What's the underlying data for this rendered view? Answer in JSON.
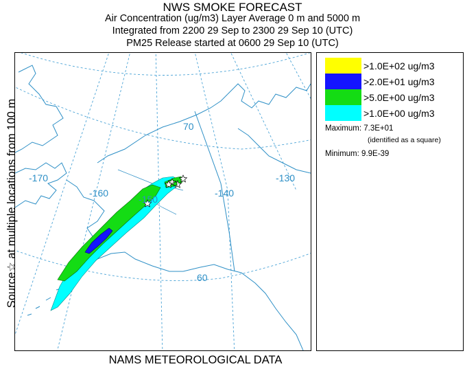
{
  "header": {
    "title": "NWS SMOKE FORECAST",
    "line2": "Air Concentration (ug/m3) Layer Average    0 m and  5000 m",
    "line3": "Integrated from 2200 29 Sep to 2300 29 Sep 10 (UTC)",
    "line4": "PM25 Release started at 0600 29 Sep 10 (UTC)"
  },
  "side_label": "Source☆  at multiple locations  from  100 m",
  "footer": "NAMS METEOROLOGICAL DATA",
  "map": {
    "longitude_labels": [
      "-170",
      "-160",
      "-150",
      "-140",
      "-130"
    ],
    "latitude_labels": [
      "70",
      "60"
    ],
    "colors": {
      "coast": "#2d8fc6",
      "grid": "#4aa3d6",
      "label": "#2d8fc6",
      "above_100": "#ffff00",
      "above_20": "#1414ff",
      "above_5": "#14dc14",
      "above_1": "#00ffff"
    }
  },
  "legend": {
    "items": [
      {
        "label": ">1.0E+02 ug/m3",
        "color": "#ffff00"
      },
      {
        "label": ">2.0E+01 ug/m3",
        "color": "#1414ff"
      },
      {
        "label": ">5.0E+00 ug/m3",
        "color": "#14dc14"
      },
      {
        "label": ">1.0E+00 ug/m3",
        "color": "#00ffff"
      }
    ],
    "maximum_label": "Maximum:",
    "maximum_value": "7.3E+01",
    "maximum_note": "(identified as a square)",
    "minimum_label": "Minimum:",
    "minimum_value": "9.9E-39"
  }
}
